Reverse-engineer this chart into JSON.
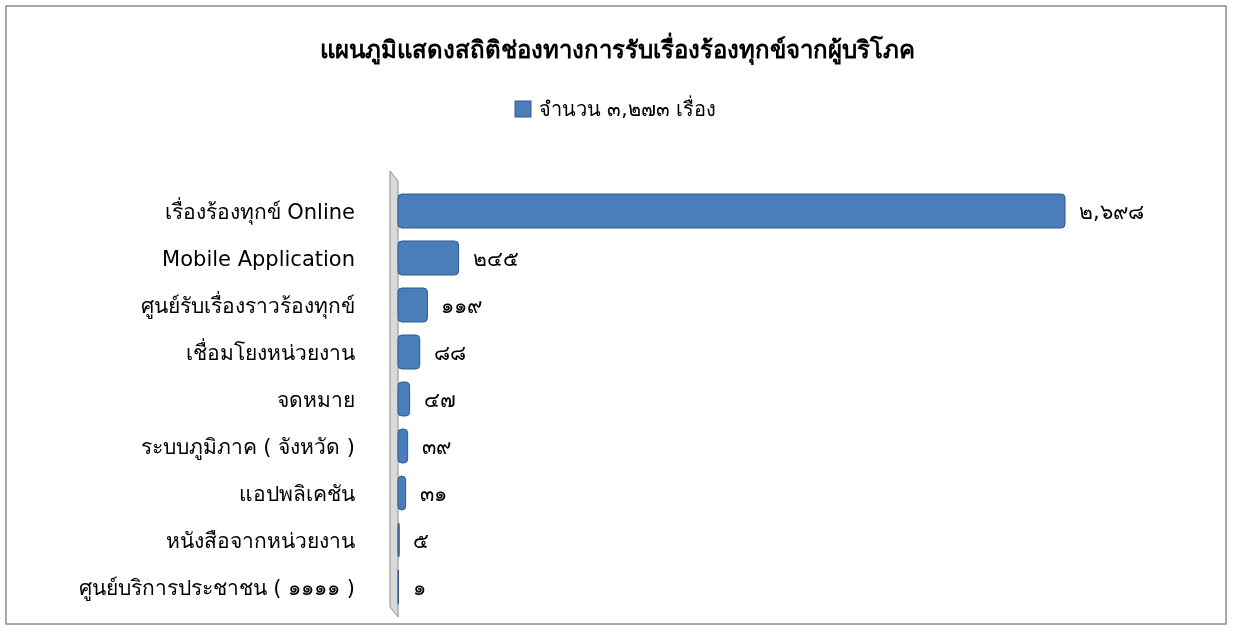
{
  "chart_data": {
    "type": "bar",
    "orientation": "horizontal",
    "legend": "top",
    "title": "แผนภูมิแสดงสถิติช่องทางการรับเรื่องร้องทุกข์จากผู้บริโภค",
    "categories": [
      "เรื่องร้องทุกข์ Online",
      "Mobile Application",
      "ศูนย์รับเรื่องราวร้องทุกข์",
      "เชื่อมโยงหน่วยงาน",
      "จดหมาย",
      "ระบบภูมิภาค ( จังหวัด )",
      "แอปพลิเคชัน",
      "หนังสือจากหน่วยงาน",
      "ศูนย์บริการประชาชน ( ๑๑๑๑ )"
    ],
    "series": [
      {
        "name": "จำนวน ๓,๒๗๓ เรื่อง",
        "color": "#4a7ebb",
        "values": [
          2698,
          245,
          119,
          88,
          47,
          39,
          31,
          5,
          1
        ],
        "value_labels": [
          "๒,๖๙๘",
          "๒๔๕",
          "๑๑๙",
          "๘๘",
          "๔๗",
          "๓๙",
          "๓๑",
          "๕",
          "๑"
        ]
      }
    ]
  }
}
